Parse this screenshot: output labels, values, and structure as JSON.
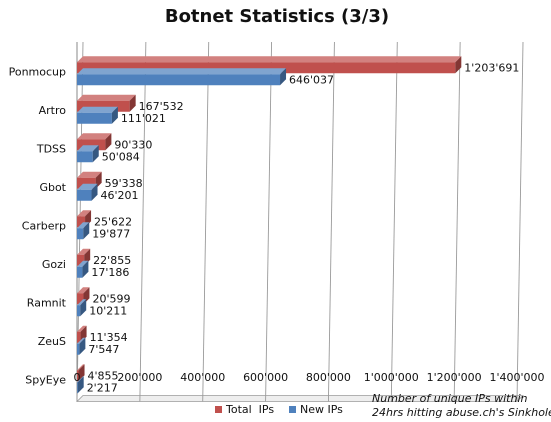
{
  "chart_data": {
    "type": "bar",
    "orientation": "horizontal",
    "style": "3d",
    "title": "Botnet Statistics (3/3)",
    "categories": [
      "Ponmocup",
      "Artro",
      "TDSS",
      "Gbot",
      "Carberp",
      "Gozi",
      "Ramnit",
      "ZeuS",
      "SpyEye"
    ],
    "series": [
      {
        "name": "Total  IPs",
        "color": "#c0504d",
        "values": [
          1203691,
          167532,
          90330,
          59338,
          25622,
          22855,
          20599,
          11354,
          4855
        ],
        "labels": [
          "1'203'691",
          "167'532",
          "90'330",
          "59'338",
          "25'622",
          "22'855",
          "20'599",
          "11'354",
          "4'855"
        ]
      },
      {
        "name": "New IPs",
        "color": "#4f81bd",
        "values": [
          646037,
          111021,
          50084,
          46201,
          19877,
          17186,
          10211,
          7547,
          2217
        ],
        "labels": [
          "646'037",
          "111'021",
          "50'084",
          "46'201",
          "19'877",
          "17'186",
          "10'211",
          "7'547",
          "2'217"
        ]
      }
    ],
    "xlim": [
      0,
      1400000
    ],
    "x_ticks": [
      0,
      200000,
      400000,
      600000,
      800000,
      1000000,
      1200000,
      1400000
    ],
    "x_tick_labels": [
      "0",
      "200'000",
      "400'000",
      "600'000",
      "800'000",
      "1'000'000",
      "1'200'000",
      "1'400'000"
    ],
    "grid": true,
    "legend_position": "bottom",
    "annotation": [
      "Number of unique IPs within",
      "24hrs hitting abuse.ch's Sinkhole"
    ]
  }
}
